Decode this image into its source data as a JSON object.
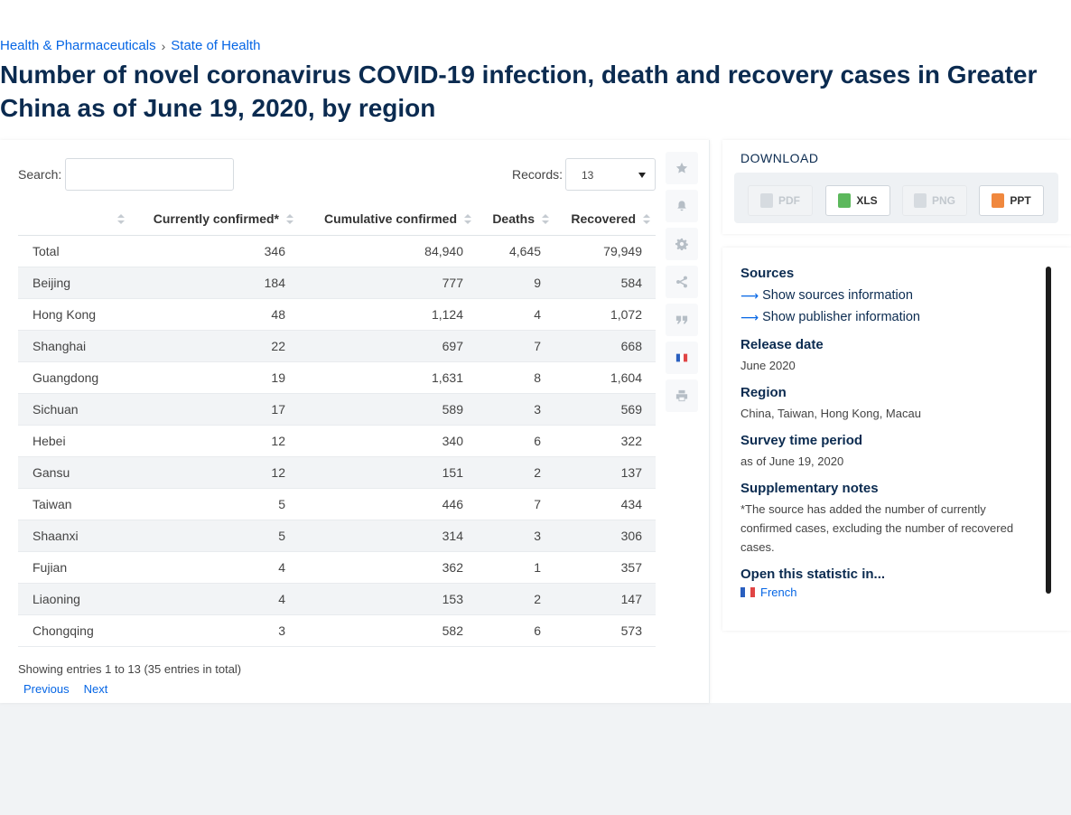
{
  "breadcrumb": {
    "items": [
      "Health & Pharmaceuticals",
      "State of Health"
    ],
    "separator": "›"
  },
  "page_title": "Number of novel coronavirus COVID-19 infection, death and recovery cases in Greater China as of June 19, 2020, by region",
  "controls": {
    "search_label": "Search:",
    "search_value": "",
    "records_label": "Records:",
    "records_value": "13"
  },
  "table": {
    "columns": [
      "",
      "Currently confirmed*",
      "Cumulative confirmed",
      "Deaths",
      "Recovered"
    ],
    "rows": [
      {
        "region": "Total",
        "current": "346",
        "cumulative": "84,940",
        "deaths": "4,645",
        "recovered": "79,949"
      },
      {
        "region": "Beijing",
        "current": "184",
        "cumulative": "777",
        "deaths": "9",
        "recovered": "584"
      },
      {
        "region": "Hong Kong",
        "current": "48",
        "cumulative": "1,124",
        "deaths": "4",
        "recovered": "1,072"
      },
      {
        "region": "Shanghai",
        "current": "22",
        "cumulative": "697",
        "deaths": "7",
        "recovered": "668"
      },
      {
        "region": "Guangdong",
        "current": "19",
        "cumulative": "1,631",
        "deaths": "8",
        "recovered": "1,604"
      },
      {
        "region": "Sichuan",
        "current": "17",
        "cumulative": "589",
        "deaths": "3",
        "recovered": "569"
      },
      {
        "region": "Hebei",
        "current": "12",
        "cumulative": "340",
        "deaths": "6",
        "recovered": "322"
      },
      {
        "region": "Gansu",
        "current": "12",
        "cumulative": "151",
        "deaths": "2",
        "recovered": "137"
      },
      {
        "region": "Taiwan",
        "current": "5",
        "cumulative": "446",
        "deaths": "7",
        "recovered": "434"
      },
      {
        "region": "Shaanxi",
        "current": "5",
        "cumulative": "314",
        "deaths": "3",
        "recovered": "306"
      },
      {
        "region": "Fujian",
        "current": "4",
        "cumulative": "362",
        "deaths": "1",
        "recovered": "357"
      },
      {
        "region": "Liaoning",
        "current": "4",
        "cumulative": "153",
        "deaths": "2",
        "recovered": "147"
      },
      {
        "region": "Chongqing",
        "current": "3",
        "cumulative": "582",
        "deaths": "6",
        "recovered": "573"
      }
    ]
  },
  "entries_info": "Showing entries 1 to 13 (35 entries in total)",
  "pager": {
    "previous": "Previous",
    "next": "Next"
  },
  "toolbar_icons": [
    "star-icon",
    "bell-icon",
    "gear-icon",
    "share-icon",
    "quote-icon",
    "french-flag-icon",
    "print-icon"
  ],
  "download": {
    "title": "DOWNLOAD",
    "buttons": [
      {
        "label": "PDF",
        "enabled": false,
        "color": "#c2c8ce"
      },
      {
        "label": "XLS",
        "enabled": true,
        "color": "#5cb85c"
      },
      {
        "label": "PNG",
        "enabled": false,
        "color": "#c2c8ce"
      },
      {
        "label": "PPT",
        "enabled": true,
        "color": "#f0883e"
      }
    ]
  },
  "info": {
    "sources_heading": "Sources",
    "show_sources": "Show sources information",
    "show_publisher": "Show publisher information",
    "release_heading": "Release date",
    "release_value": "June 2020",
    "region_heading": "Region",
    "region_value": "China, Taiwan, Hong Kong, Macau",
    "survey_heading": "Survey time period",
    "survey_value": "as of June 19, 2020",
    "notes_heading": "Supplementary notes",
    "notes_value": "*The source has added the number of currently confirmed cases, excluding the number of recovered cases.",
    "open_heading": "Open this statistic in...",
    "open_language": "French"
  },
  "colors": {
    "link": "#0666e5",
    "heading": "#0b2b50",
    "row_alt": "#f2f4f6"
  }
}
